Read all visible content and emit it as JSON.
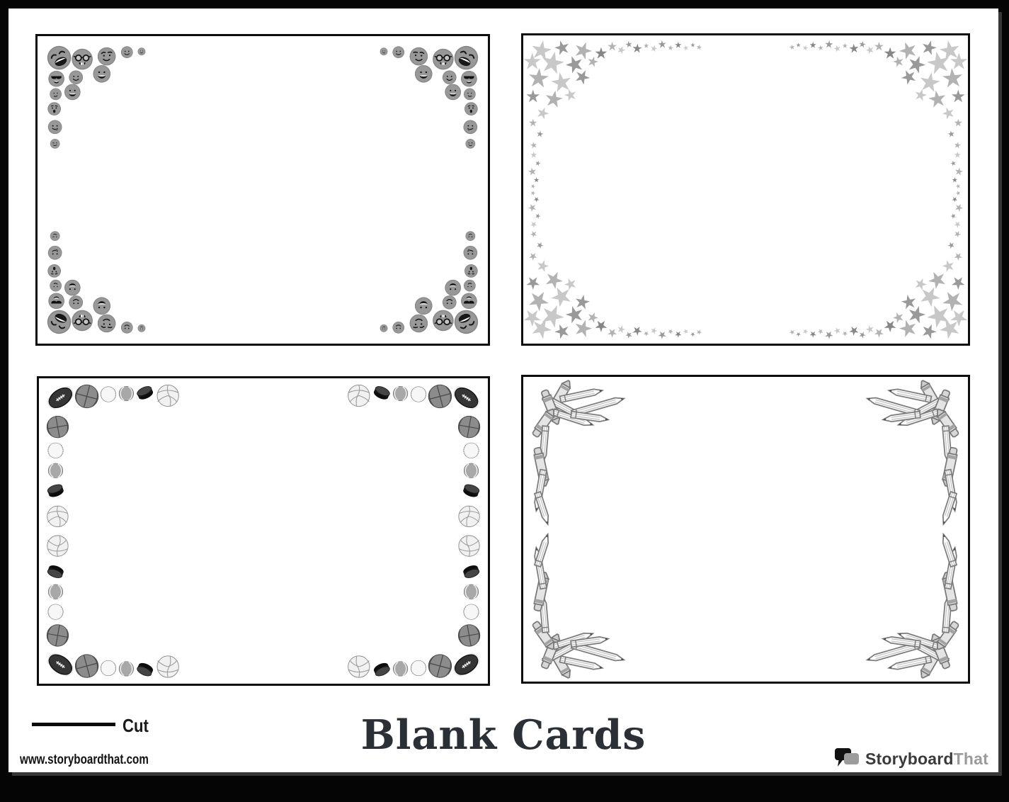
{
  "page": {
    "background": "#050505",
    "sheet_color": "#ffffff",
    "card_border_color": "#0d0d0d"
  },
  "footer": {
    "cut_label": "Cut",
    "url": "www.storyboardthat.com",
    "title": "Blank Cards",
    "logo": {
      "part1": "Storyboard",
      "part2": "That",
      "color1": "#3a3a3a",
      "color2": "#9b9b9b"
    }
  },
  "cards": [
    {
      "id": "card-emoji",
      "name": "blank-card-emoji-border",
      "decor": {
        "type": "faces",
        "base_color": "#8f8f8f",
        "region": [
          320,
          220
        ],
        "items": [
          [
            31,
            31,
            17,
            "rofl"
          ],
          [
            64,
            33,
            15,
            "nerd"
          ],
          [
            99,
            29,
            13,
            "flirt"
          ],
          [
            128,
            23,
            8.5,
            "smile"
          ],
          [
            149,
            22,
            5.5,
            "smirk"
          ],
          [
            27,
            61,
            11.5,
            "sunglasses"
          ],
          [
            55,
            59,
            10,
            "smile"
          ],
          [
            92,
            54,
            12.5,
            "bigsmile"
          ],
          [
            26,
            83,
            8.5,
            "smirk"
          ],
          [
            50,
            80,
            11.5,
            "bigsmile"
          ],
          [
            24,
            104,
            9.5,
            "shock"
          ],
          [
            25,
            130,
            10,
            "tongue"
          ],
          [
            25,
            154,
            7,
            "wink"
          ]
        ]
      }
    },
    {
      "id": "card-stars",
      "name": "blank-card-stars-border",
      "decor": {
        "type": "stars",
        "palette": [
          "#c8c8c8",
          "#b2b2b2",
          "#999999",
          "#868686"
        ],
        "region": [
          320,
          220
        ],
        "items": [
          [
            26,
            22,
            15,
            10,
            0
          ],
          [
            56,
            18,
            11,
            -15,
            2
          ],
          [
            86,
            22,
            13,
            20,
            1
          ],
          [
            112,
            26,
            9,
            0,
            3
          ],
          [
            13,
            38,
            13,
            0,
            0
          ],
          [
            42,
            40,
            17,
            12,
            0
          ],
          [
            74,
            42,
            13,
            -20,
            2
          ],
          [
            100,
            38,
            8,
            15,
            1
          ],
          [
            22,
            62,
            15,
            5,
            1
          ],
          [
            55,
            68,
            15,
            -10,
            0
          ],
          [
            85,
            60,
            11,
            25,
            2
          ],
          [
            14,
            88,
            10,
            0,
            2
          ],
          [
            44,
            92,
            13,
            10,
            1
          ],
          [
            68,
            86,
            9,
            -15,
            0
          ],
          [
            28,
            112,
            9,
            20,
            0
          ],
          [
            14,
            126,
            6,
            0,
            1
          ],
          [
            24,
            142,
            5,
            10,
            2
          ],
          [
            15,
            158,
            5,
            -10,
            1
          ],
          [
            128,
            16,
            7,
            0,
            1
          ],
          [
            141,
            21,
            6,
            20,
            0
          ],
          [
            152,
            13,
            5,
            -10,
            2
          ],
          [
            164,
            19,
            7,
            5,
            3
          ],
          [
            177,
            15,
            4,
            0,
            1
          ],
          [
            188,
            19,
            5,
            15,
            0
          ],
          [
            200,
            13,
            6,
            -5,
            2
          ],
          [
            212,
            18,
            4,
            10,
            1
          ],
          [
            223,
            14,
            5,
            0,
            3
          ],
          [
            234,
            18,
            4,
            -15,
            0
          ],
          [
            244,
            14,
            3.5,
            0,
            2
          ],
          [
            253,
            17,
            4,
            10,
            1
          ],
          [
            15,
            172,
            5,
            0,
            0
          ],
          [
            21,
            184,
            4,
            15,
            2
          ],
          [
            13,
            196,
            6,
            -10,
            1
          ],
          [
            19,
            208,
            4,
            0,
            3
          ],
          [
            14,
            217,
            3.5,
            20,
            1
          ]
        ]
      }
    },
    {
      "id": "card-sports",
      "name": "blank-card-sports-border",
      "decor": {
        "type": "balls",
        "region": [
          320,
          220
        ],
        "items": [
          [
            31,
            28,
            37,
            "football",
            -35
          ],
          [
            69,
            26,
            33,
            "basketball",
            15
          ],
          [
            100,
            23,
            22,
            "baseball",
            0
          ],
          [
            126,
            22,
            21,
            "tennis",
            0
          ],
          [
            153,
            21,
            24,
            "puck",
            -25
          ],
          [
            186,
            25,
            31,
            "volleyball",
            0
          ],
          [
            27,
            70,
            31,
            "basketball",
            -10
          ],
          [
            24,
            104,
            22,
            "baseball",
            0
          ],
          [
            24,
            133,
            21,
            "tennis",
            0
          ],
          [
            24,
            162,
            24,
            "puck",
            -20
          ],
          [
            27,
            199,
            30,
            "volleyball",
            0
          ]
        ]
      }
    },
    {
      "id": "card-pencils",
      "name": "blank-card-pencils-border",
      "decor": {
        "type": "pencils",
        "region": [
          320,
          220
        ],
        "items": [
          [
            52,
            30,
            56,
            -60,
            "crayon"
          ],
          [
            84,
            26,
            62,
            -12,
            "pencil"
          ],
          [
            58,
            44,
            64,
            28,
            "pencil"
          ],
          [
            108,
            42,
            78,
            -16,
            "pencil"
          ],
          [
            40,
            44,
            52,
            68,
            "crayon"
          ],
          [
            72,
            60,
            60,
            18,
            "pencil"
          ],
          [
            30,
            66,
            46,
            -55,
            "crayon"
          ],
          [
            96,
            58,
            54,
            8,
            "pencil"
          ],
          [
            30,
            98,
            54,
            95,
            "pencil"
          ],
          [
            26,
            130,
            56,
            78,
            "crayon"
          ],
          [
            24,
            164,
            60,
            100,
            "pencil"
          ],
          [
            28,
            190,
            48,
            72,
            "pencil"
          ]
        ]
      }
    }
  ]
}
